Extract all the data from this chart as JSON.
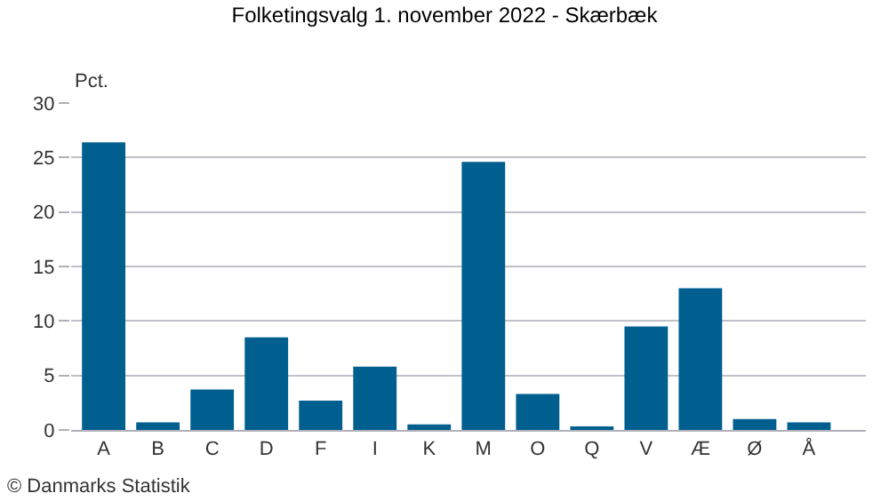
{
  "chart_data": {
    "type": "bar",
    "title": "Folketingsvalg 1. november 2022 - Skærbæk",
    "ylabel": "Pct.",
    "categories": [
      "A",
      "B",
      "C",
      "D",
      "F",
      "I",
      "K",
      "M",
      "O",
      "Q",
      "V",
      "Æ",
      "Ø",
      "Å"
    ],
    "values": [
      26.4,
      0.7,
      3.7,
      8.5,
      2.7,
      5.8,
      0.5,
      24.6,
      3.3,
      0.2,
      9.5,
      13.0,
      1.0,
      0.7
    ],
    "color": "#005f8f",
    "ylim": [
      0,
      30
    ],
    "yticks": [
      0,
      5,
      10,
      15,
      20,
      25,
      30
    ],
    "grid": "y",
    "legend": false,
    "annotations": [
      "© Danmarks Statistik"
    ]
  }
}
